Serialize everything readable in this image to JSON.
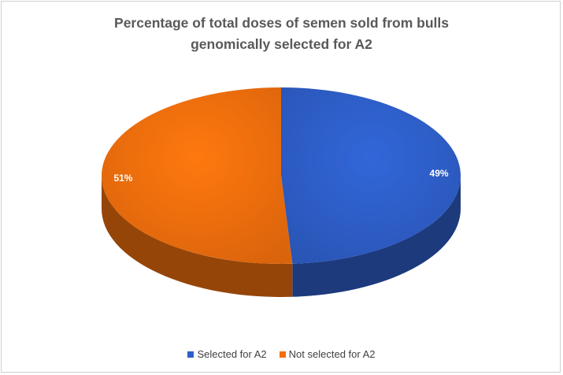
{
  "chart_data": {
    "type": "pie",
    "title_lines": [
      "Percentage of total doses of semen sold from bulls",
      "genomically selected for A2"
    ],
    "slices": [
      {
        "label": "Selected for A2",
        "value": 49,
        "display": "49%",
        "color": "#2e5ec9"
      },
      {
        "label": "Not selected for A2",
        "value": 51,
        "display": "51%",
        "color": "#f26f0d"
      }
    ],
    "legend_position": "bottom",
    "style": "3d"
  }
}
